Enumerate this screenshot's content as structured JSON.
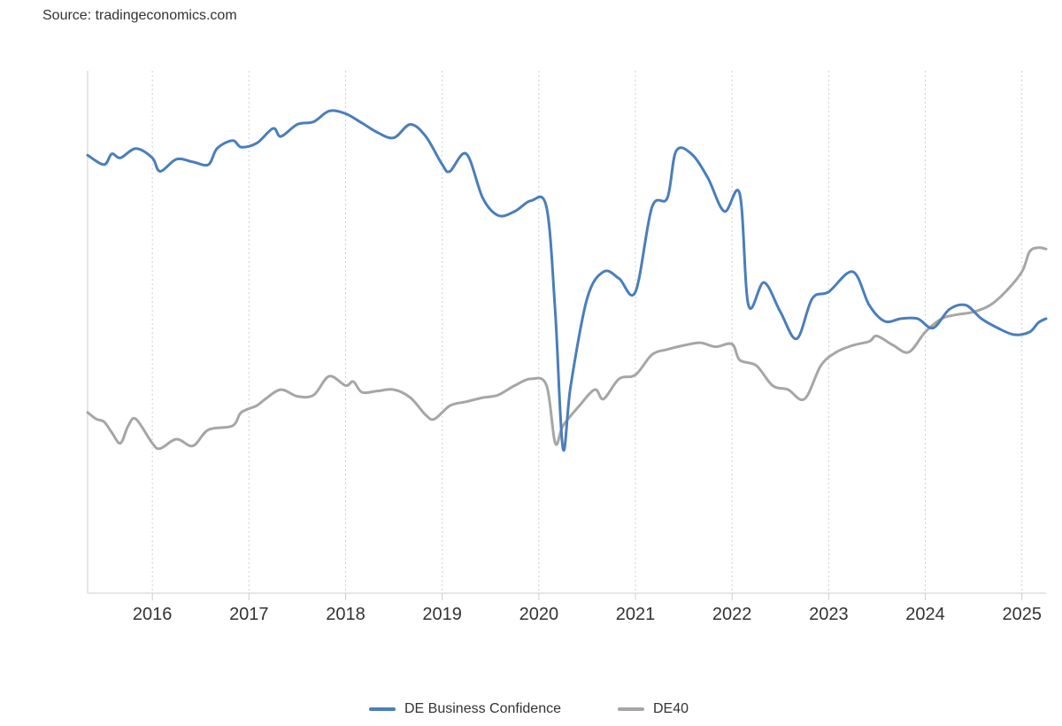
{
  "source": "Source: tradingeconomics.com",
  "chart_data": {
    "type": "line",
    "title": "",
    "xlabel": "",
    "ylabel": "",
    "yaxis_labels": "hidden",
    "x_ticks": [
      "2016",
      "2017",
      "2018",
      "2019",
      "2020",
      "2021",
      "2022",
      "2023",
      "2024",
      "2025"
    ],
    "xlim": [
      2015.33,
      2025.25
    ],
    "ylim": [
      -1.0,
      2.9
    ],
    "grid": "vertical dotted",
    "legend_position": "bottom-center",
    "note": "Series values are relative (indexed) levels estimated from the plot; the chart shows no y-axis scale.",
    "series": [
      {
        "name": "DE Business Confidence",
        "color": "#4a7ebb",
        "points": [
          [
            2015.33,
            2.27
          ],
          [
            2015.5,
            2.2
          ],
          [
            2015.58,
            2.28
          ],
          [
            2015.67,
            2.25
          ],
          [
            2015.83,
            2.32
          ],
          [
            2016.0,
            2.25
          ],
          [
            2016.08,
            2.15
          ],
          [
            2016.25,
            2.24
          ],
          [
            2016.42,
            2.22
          ],
          [
            2016.58,
            2.2
          ],
          [
            2016.67,
            2.32
          ],
          [
            2016.83,
            2.38
          ],
          [
            2016.92,
            2.33
          ],
          [
            2017.08,
            2.36
          ],
          [
            2017.25,
            2.47
          ],
          [
            2017.33,
            2.41
          ],
          [
            2017.5,
            2.5
          ],
          [
            2017.67,
            2.52
          ],
          [
            2017.83,
            2.6
          ],
          [
            2018.0,
            2.58
          ],
          [
            2018.17,
            2.51
          ],
          [
            2018.33,
            2.44
          ],
          [
            2018.5,
            2.4
          ],
          [
            2018.67,
            2.5
          ],
          [
            2018.83,
            2.41
          ],
          [
            2019.0,
            2.2
          ],
          [
            2019.08,
            2.15
          ],
          [
            2019.25,
            2.28
          ],
          [
            2019.42,
            1.95
          ],
          [
            2019.58,
            1.82
          ],
          [
            2019.75,
            1.85
          ],
          [
            2019.92,
            1.93
          ],
          [
            2020.08,
            1.88
          ],
          [
            2020.17,
            1.1
          ],
          [
            2020.25,
            0.08
          ],
          [
            2020.33,
            0.55
          ],
          [
            2020.5,
            1.2
          ],
          [
            2020.67,
            1.4
          ],
          [
            2020.83,
            1.35
          ],
          [
            2021.0,
            1.25
          ],
          [
            2021.17,
            1.88
          ],
          [
            2021.33,
            1.95
          ],
          [
            2021.42,
            2.3
          ],
          [
            2021.58,
            2.28
          ],
          [
            2021.75,
            2.1
          ],
          [
            2021.92,
            1.85
          ],
          [
            2022.08,
            1.98
          ],
          [
            2022.17,
            1.15
          ],
          [
            2022.33,
            1.32
          ],
          [
            2022.5,
            1.1
          ],
          [
            2022.67,
            0.9
          ],
          [
            2022.83,
            1.2
          ],
          [
            2023.0,
            1.25
          ],
          [
            2023.25,
            1.4
          ],
          [
            2023.42,
            1.15
          ],
          [
            2023.58,
            1.03
          ],
          [
            2023.75,
            1.05
          ],
          [
            2023.92,
            1.05
          ],
          [
            2024.08,
            0.98
          ],
          [
            2024.25,
            1.12
          ],
          [
            2024.42,
            1.15
          ],
          [
            2024.58,
            1.05
          ],
          [
            2024.75,
            0.98
          ],
          [
            2024.92,
            0.93
          ],
          [
            2025.08,
            0.95
          ],
          [
            2025.17,
            1.02
          ],
          [
            2025.25,
            1.05
          ]
        ]
      },
      {
        "name": "DE40",
        "color": "#a6a6a6",
        "points": [
          [
            2015.33,
            0.35
          ],
          [
            2015.42,
            0.3
          ],
          [
            2015.5,
            0.28
          ],
          [
            2015.58,
            0.2
          ],
          [
            2015.67,
            0.12
          ],
          [
            2015.75,
            0.25
          ],
          [
            2015.83,
            0.3
          ],
          [
            2016.0,
            0.12
          ],
          [
            2016.08,
            0.08
          ],
          [
            2016.25,
            0.15
          ],
          [
            2016.42,
            0.1
          ],
          [
            2016.58,
            0.22
          ],
          [
            2016.83,
            0.25
          ],
          [
            2016.92,
            0.35
          ],
          [
            2017.08,
            0.4
          ],
          [
            2017.17,
            0.45
          ],
          [
            2017.33,
            0.52
          ],
          [
            2017.5,
            0.47
          ],
          [
            2017.67,
            0.48
          ],
          [
            2017.83,
            0.62
          ],
          [
            2018.0,
            0.55
          ],
          [
            2018.08,
            0.58
          ],
          [
            2018.17,
            0.5
          ],
          [
            2018.33,
            0.51
          ],
          [
            2018.5,
            0.52
          ],
          [
            2018.67,
            0.46
          ],
          [
            2018.83,
            0.33
          ],
          [
            2018.92,
            0.3
          ],
          [
            2019.08,
            0.4
          ],
          [
            2019.25,
            0.43
          ],
          [
            2019.42,
            0.46
          ],
          [
            2019.58,
            0.48
          ],
          [
            2019.75,
            0.55
          ],
          [
            2019.92,
            0.6
          ],
          [
            2020.08,
            0.55
          ],
          [
            2020.17,
            0.12
          ],
          [
            2020.25,
            0.25
          ],
          [
            2020.42,
            0.4
          ],
          [
            2020.58,
            0.52
          ],
          [
            2020.67,
            0.45
          ],
          [
            2020.83,
            0.6
          ],
          [
            2021.0,
            0.63
          ],
          [
            2021.17,
            0.78
          ],
          [
            2021.33,
            0.82
          ],
          [
            2021.5,
            0.85
          ],
          [
            2021.67,
            0.87
          ],
          [
            2021.83,
            0.84
          ],
          [
            2022.0,
            0.86
          ],
          [
            2022.08,
            0.74
          ],
          [
            2022.25,
            0.7
          ],
          [
            2022.42,
            0.55
          ],
          [
            2022.58,
            0.52
          ],
          [
            2022.75,
            0.45
          ],
          [
            2022.92,
            0.7
          ],
          [
            2023.08,
            0.8
          ],
          [
            2023.25,
            0.85
          ],
          [
            2023.42,
            0.88
          ],
          [
            2023.5,
            0.92
          ],
          [
            2023.67,
            0.85
          ],
          [
            2023.83,
            0.8
          ],
          [
            2024.0,
            0.95
          ],
          [
            2024.17,
            1.05
          ],
          [
            2024.33,
            1.08
          ],
          [
            2024.5,
            1.1
          ],
          [
            2024.67,
            1.15
          ],
          [
            2024.83,
            1.25
          ],
          [
            2025.0,
            1.4
          ],
          [
            2025.08,
            1.55
          ],
          [
            2025.17,
            1.58
          ],
          [
            2025.25,
            1.57
          ]
        ]
      }
    ]
  }
}
